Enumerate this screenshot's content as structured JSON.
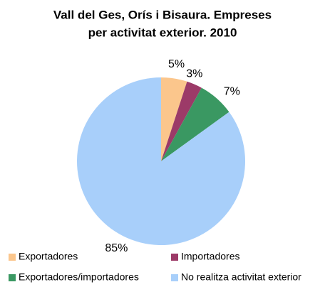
{
  "chart_data": {
    "type": "pie",
    "title": [
      "Vall del Ges, Orís i Bisaura. Empreses",
      "per activitat exterior. 2010"
    ],
    "categories": [
      "Exportadores",
      "Importadores",
      "Exportadores/importadores",
      "No realitza activitat exterior"
    ],
    "values": [
      5,
      3,
      7,
      85
    ],
    "value_labels": [
      "5%",
      "3%",
      "7%",
      "85%"
    ],
    "colors": [
      "#fbc68c",
      "#9c3a68",
      "#3a9862",
      "#a8cffa"
    ]
  }
}
